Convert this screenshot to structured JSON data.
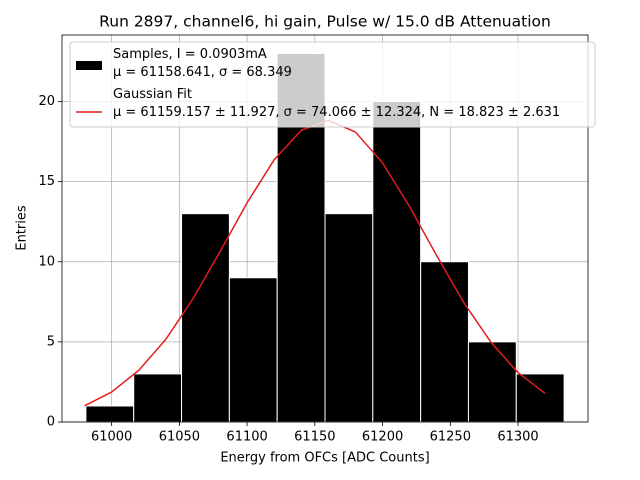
{
  "chart_data": {
    "type": "histogram",
    "title": "Run 2897, channel6, hi gain, Pulse w/ 15.0 dB Attenuation",
    "x_label": "Energy from OFCs [ADC Counts]",
    "y_label": "Entries",
    "xlim": [
      60963.35,
      61351.65
    ],
    "ylim": [
      0,
      24.15
    ],
    "xticks": [
      61000,
      61050,
      61100,
      61150,
      61200,
      61250,
      61300
    ],
    "yticks": [
      0,
      5,
      10,
      15,
      20
    ],
    "grid": true,
    "legend": "upper left",
    "series": [
      {
        "name": "Samples, I = 0.0903mA\nμ = 61158.641, σ = 68.349",
        "color": "#000000",
        "bins": [
          60981,
          61016.3,
          61051.6,
          61086.9,
          61122.2,
          61157.5,
          61192.8,
          61228.1,
          61263.4,
          61298.7,
          61334
        ],
        "values": [
          1,
          3,
          13,
          9,
          23,
          13,
          20,
          10,
          5,
          3
        ]
      },
      {
        "name": "Gaussian Fit\nμ = 61159.157 ± 11.927, σ = 74.066 ± 12.324, N = 18.823 ± 2.631",
        "color": "#e41a1c",
        "x": [
          60980,
          61000,
          61020,
          61040,
          61060,
          61080,
          61100,
          61120,
          61140,
          61160,
          61180,
          61200,
          61220,
          61240,
          61260,
          61280,
          61300,
          61320
        ],
        "values": [
          1.01,
          1.87,
          3.222,
          5.16,
          7.682,
          10.633,
          13.683,
          16.369,
          18.204,
          18.822,
          18.093,
          16.169,
          13.432,
          10.375,
          7.45,
          4.973,
          3.087,
          1.781
        ]
      }
    ]
  }
}
